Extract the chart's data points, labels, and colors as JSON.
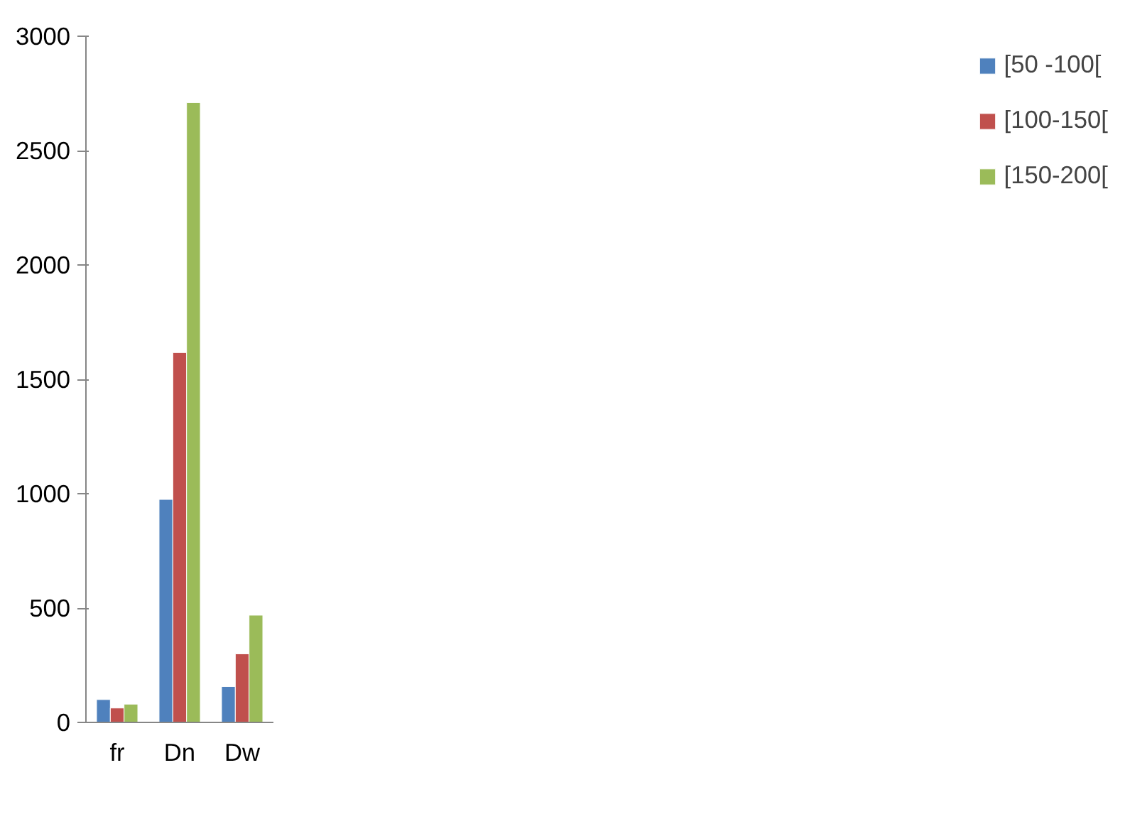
{
  "chart_data": {
    "type": "bar",
    "categories": [
      "fr",
      "Dn",
      "Dw"
    ],
    "series": [
      {
        "name": "[50 -100[",
        "color": "#4f81bd",
        "values": [
          100,
          975,
          157
        ]
      },
      {
        "name": "[100-150[",
        "color": "#c0504d",
        "values": [
          63,
          1617,
          300
        ]
      },
      {
        "name": "[150-200[",
        "color": "#9bbb59",
        "values": [
          80,
          2710,
          469
        ]
      }
    ],
    "ylim": [
      0,
      3000
    ],
    "yticks": [
      0,
      500,
      1000,
      1500,
      2000,
      2500,
      3000
    ],
    "grid": false,
    "legend": "right"
  }
}
